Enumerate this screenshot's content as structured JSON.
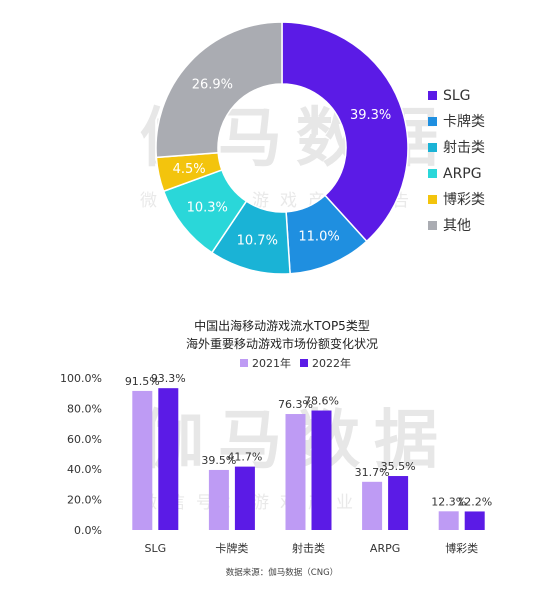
{
  "watermark": {
    "brand": "伽马数据",
    "subtitle": "微信号：游戏产业报告"
  },
  "colors": {
    "SLG": "#5B1BE6",
    "卡牌类": "#1F8FE0",
    "射击类": "#1AB3D6",
    "ARPG": "#2AD7D9",
    "博彩类": "#F3C40D",
    "其他": "#AAACB2",
    "bar2021": "#BE9BF4",
    "bar2022": "#5B1BE6"
  },
  "chart_data": [
    {
      "type": "pie",
      "title": "",
      "labels": [
        "SLG",
        "卡牌类",
        "射击类",
        "ARPG",
        "博彩类",
        "其他"
      ],
      "values": [
        39.3,
        11.0,
        10.7,
        10.3,
        4.5,
        26.9
      ],
      "value_labels": [
        "39.3%",
        "11.0%",
        "10.7%",
        "10.3%",
        "4.5%",
        "26.9%"
      ],
      "donut": true,
      "legend_position": "right"
    },
    {
      "type": "bar",
      "title": "中国出海移动游戏流水TOP5类型",
      "subtitle": "海外重要移动游戏市场份额变化状况",
      "categories": [
        "SLG",
        "卡牌类",
        "射击类",
        "ARPG",
        "博彩类"
      ],
      "series": [
        {
          "name": "2021年",
          "values": [
            91.5,
            39.5,
            76.3,
            31.7,
            12.3
          ],
          "labels": [
            "91.5%",
            "39.5%",
            "76.3%",
            "31.7%",
            "12.3%"
          ]
        },
        {
          "name": "2022年",
          "values": [
            93.3,
            41.7,
            78.6,
            35.5,
            12.2
          ],
          "labels": [
            "93.3%",
            "41.7%",
            "78.6%",
            "35.5%",
            "12.2%"
          ]
        }
      ],
      "ylim": [
        0,
        100
      ],
      "yticks": [
        "0.0%",
        "20.0%",
        "40.0%",
        "60.0%",
        "80.0%",
        "100.0%"
      ],
      "grid": false,
      "legend_position": "top",
      "source": "数据来源：伽马数据（CNG）"
    }
  ]
}
